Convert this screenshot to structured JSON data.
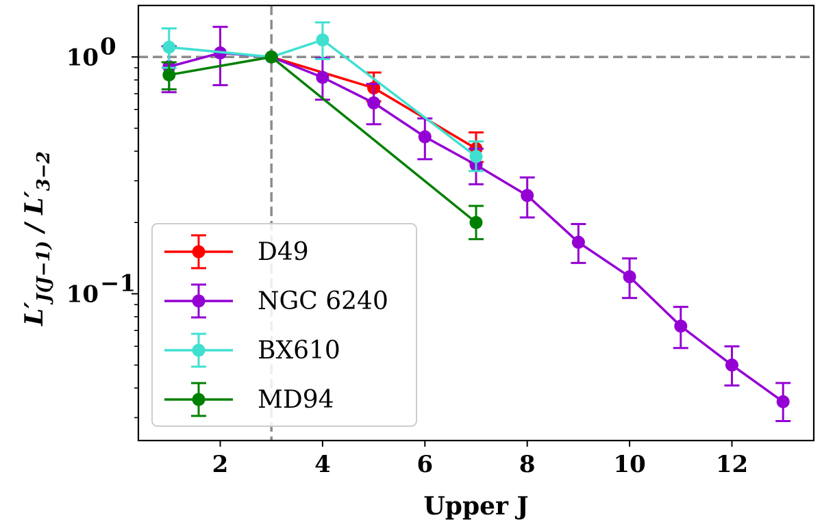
{
  "chart_data": {
    "type": "line",
    "title": "",
    "xlabel": "Upper J",
    "ylabel": "L′J(J−1) / L′3−2",
    "ylabel_parts": {
      "main": "L′",
      "sub": "J(J−1)",
      "slash": "/",
      "main2": "L′",
      "sub2": "3−2"
    },
    "x_scale": "linear",
    "y_scale": "log",
    "xlim": [
      0.4,
      13.6
    ],
    "ylim": [
      0.024,
      1.65
    ],
    "xticks": [
      2,
      4,
      6,
      8,
      10,
      12
    ],
    "xtick_labels": [
      "2",
      "4",
      "6",
      "8",
      "10",
      "12"
    ],
    "yticks_major": [
      {
        "value": 0.1,
        "base": "10",
        "exp": "−1"
      },
      {
        "value": 1.0,
        "base": "10",
        "exp": "0"
      }
    ],
    "reference_lines": {
      "vertical_x": 3,
      "horizontal_y": 1.0,
      "style": "dashed",
      "color": "#8c8c8c"
    },
    "legend_position": "lower-left",
    "series": [
      {
        "name": "D49",
        "color": "#ff0000",
        "x": [
          3,
          5,
          7
        ],
        "y": [
          1.0,
          0.74,
          0.41
        ],
        "yerr_low": [
          0.0,
          0.09,
          0.05
        ],
        "yerr_high": [
          0.0,
          0.12,
          0.07
        ]
      },
      {
        "name": "NGC 6240",
        "color": "#9400d3",
        "x": [
          1,
          2,
          3,
          4,
          5,
          6,
          7,
          8,
          9,
          10,
          11,
          12,
          13
        ],
        "y": [
          0.91,
          1.04,
          1.0,
          0.82,
          0.64,
          0.46,
          0.35,
          0.26,
          0.165,
          0.118,
          0.073,
          0.05,
          0.035
        ],
        "yerr_low": [
          0.2,
          0.28,
          0.0,
          0.16,
          0.12,
          0.09,
          0.06,
          0.05,
          0.03,
          0.022,
          0.014,
          0.009,
          0.006
        ],
        "yerr_high": [
          0.2,
          0.3,
          0.0,
          0.17,
          0.13,
          0.09,
          0.06,
          0.05,
          0.032,
          0.023,
          0.015,
          0.01,
          0.007
        ]
      },
      {
        "name": "BX610",
        "color": "#40e0d0",
        "x": [
          1,
          3,
          4,
          7
        ],
        "y": [
          1.1,
          1.0,
          1.18,
          0.38
        ],
        "yerr_low": [
          0.2,
          0.0,
          0.2,
          0.05
        ],
        "yerr_high": [
          0.22,
          0.0,
          0.22,
          0.06
        ]
      },
      {
        "name": "MD94",
        "color": "#008000",
        "x": [
          1,
          3,
          7
        ],
        "y": [
          0.84,
          1.0,
          0.2
        ],
        "yerr_low": [
          0.11,
          0.0,
          0.03
        ],
        "yerr_high": [
          0.11,
          0.0,
          0.035
        ]
      }
    ]
  }
}
